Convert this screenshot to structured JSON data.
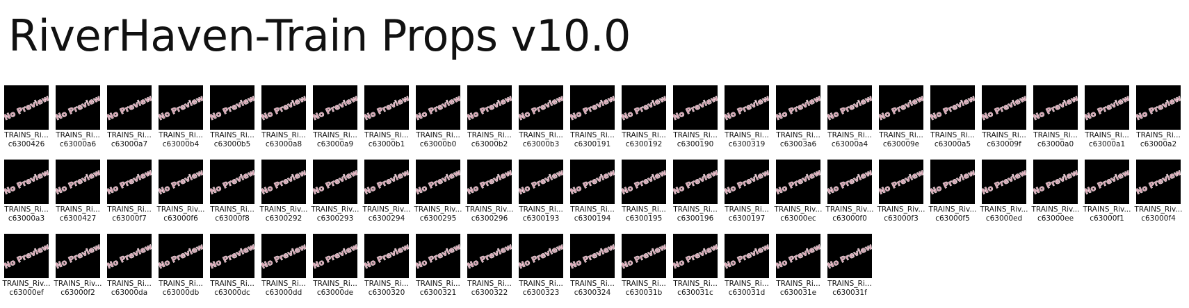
{
  "title": "RiverHaven-Train Props v10.0",
  "placeholder_text": "No Preview",
  "colors": {
    "thumb_bg": "#000000",
    "placeholder_text": "#d6a2b1",
    "placeholder_stroke": "#ffffff"
  },
  "icons": {
    "thumbnail": "no-preview-thumbnail-icon"
  },
  "items": [
    {
      "name": "TRAINS_Ri...",
      "id": "c6300426"
    },
    {
      "name": "TRAINS_Ri...",
      "id": "c63000a6"
    },
    {
      "name": "TRAINS_Ri...",
      "id": "c63000a7"
    },
    {
      "name": "TRAINS_Ri...",
      "id": "c63000b4"
    },
    {
      "name": "TRAINS_Ri...",
      "id": "c63000b5"
    },
    {
      "name": "TRAINS_Ri...",
      "id": "c63000a8"
    },
    {
      "name": "TRAINS_Ri...",
      "id": "c63000a9"
    },
    {
      "name": "TRAINS_Ri...",
      "id": "c63000b1"
    },
    {
      "name": "TRAINS_Ri...",
      "id": "c63000b0"
    },
    {
      "name": "TRAINS_Ri...",
      "id": "c63000b2"
    },
    {
      "name": "TRAINS_Ri...",
      "id": "c63000b3"
    },
    {
      "name": "TRAINS_Ri...",
      "id": "c6300191"
    },
    {
      "name": "TRAINS_Ri...",
      "id": "c6300192"
    },
    {
      "name": "TRAINS_Ri...",
      "id": "c6300190"
    },
    {
      "name": "TRAINS_Ri...",
      "id": "c6300319"
    },
    {
      "name": "TRAINS_Ri...",
      "id": "c63003a6"
    },
    {
      "name": "TRAINS_Ri...",
      "id": "c63000a4"
    },
    {
      "name": "TRAINS_Ri...",
      "id": "c630009e"
    },
    {
      "name": "TRAINS_Ri...",
      "id": "c63000a5"
    },
    {
      "name": "TRAINS_Ri...",
      "id": "c630009f"
    },
    {
      "name": "TRAINS_Ri...",
      "id": "c63000a0"
    },
    {
      "name": "TRAINS_Ri...",
      "id": "c63000a1"
    },
    {
      "name": "TRAINS_Ri...",
      "id": "c63000a2"
    },
    {
      "name": "TRAINS_Ri...",
      "id": "c63000a3"
    },
    {
      "name": "TRAINS_Ri...",
      "id": "c6300427"
    },
    {
      "name": "TRAINS_Ri...",
      "id": "c63000f7"
    },
    {
      "name": "TRAINS_Riv...",
      "id": "c63000f6"
    },
    {
      "name": "TRAINS_Ri...",
      "id": "c63000f8"
    },
    {
      "name": "TRAINS_Riv...",
      "id": "c6300292"
    },
    {
      "name": "TRAINS_Riv...",
      "id": "c6300293"
    },
    {
      "name": "TRAINS_Riv...",
      "id": "c6300294"
    },
    {
      "name": "TRAINS_Riv...",
      "id": "c6300295"
    },
    {
      "name": "TRAINS_Riv...",
      "id": "c6300296"
    },
    {
      "name": "TRAINS_Ri...",
      "id": "c6300193"
    },
    {
      "name": "TRAINS_Ri...",
      "id": "c6300194"
    },
    {
      "name": "TRAINS_Ri...",
      "id": "c6300195"
    },
    {
      "name": "TRAINS_Ri...",
      "id": "c6300196"
    },
    {
      "name": "TRAINS_Ri...",
      "id": "c6300197"
    },
    {
      "name": "TRAINS_Riv...",
      "id": "c63000ec"
    },
    {
      "name": "TRAINS_Riv...",
      "id": "c63000f0"
    },
    {
      "name": "TRAINS_Riv...",
      "id": "c63000f3"
    },
    {
      "name": "TRAINS_Riv...",
      "id": "c63000f5"
    },
    {
      "name": "TRAINS_Riv...",
      "id": "c63000ed"
    },
    {
      "name": "TRAINS_Riv...",
      "id": "c63000ee"
    },
    {
      "name": "TRAINS_Riv...",
      "id": "c63000f1"
    },
    {
      "name": "TRAINS_Riv...",
      "id": "c63000f4"
    },
    {
      "name": "TRAINS_Riv...",
      "id": "c63000ef"
    },
    {
      "name": "TRAINS_Riv...",
      "id": "c63000f2"
    },
    {
      "name": "TRAINS_Ri...",
      "id": "c63000da"
    },
    {
      "name": "TRAINS_Ri...",
      "id": "c63000db"
    },
    {
      "name": "TRAINS_Ri...",
      "id": "c63000dc"
    },
    {
      "name": "TRAINS_Ri...",
      "id": "c63000dd"
    },
    {
      "name": "TRAINS_Ri...",
      "id": "c63000de"
    },
    {
      "name": "TRAINS_Ri...",
      "id": "c6300320"
    },
    {
      "name": "TRAINS_Ri...",
      "id": "c6300321"
    },
    {
      "name": "TRAINS_Ri...",
      "id": "c6300322"
    },
    {
      "name": "TRAINS_Ri...",
      "id": "c6300323"
    },
    {
      "name": "TRAINS_Ri...",
      "id": "c6300324"
    },
    {
      "name": "TRAINS_Ri...",
      "id": "c630031b"
    },
    {
      "name": "TRAINS_Ri...",
      "id": "c630031c"
    },
    {
      "name": "TRAINS_Ri...",
      "id": "c630031d"
    },
    {
      "name": "TRAINS_Ri...",
      "id": "c630031e"
    },
    {
      "name": "TRAINS_Ri...",
      "id": "c630031f"
    }
  ]
}
